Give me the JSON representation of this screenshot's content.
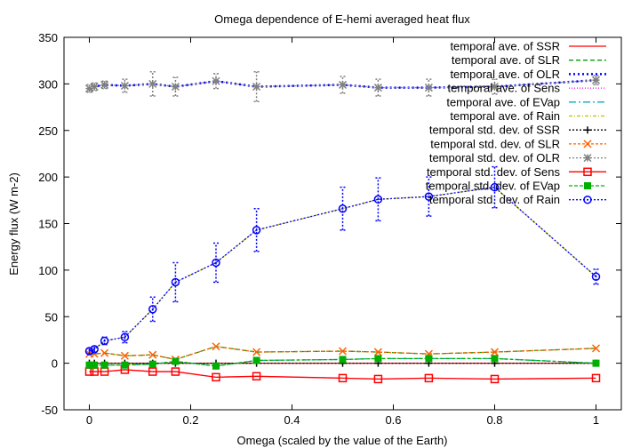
{
  "chart_data": {
    "type": "line",
    "title": "Omega dependence of E-hemi averaged heat flux",
    "xlabel": "Omega (scaled by the value of the Earth)",
    "ylabel": "Energy flux (W m-2)",
    "xlim": [
      -0.05,
      1.05
    ],
    "ylim": [
      -50,
      350
    ],
    "xticks": [
      0,
      0.2,
      0.4,
      0.6,
      0.8,
      1
    ],
    "xtick_labels": [
      "0",
      "0.2",
      "0.4",
      "0.6",
      "0.8",
      "1"
    ],
    "yticks": [
      -50,
      0,
      50,
      100,
      150,
      200,
      250,
      300,
      350
    ],
    "ytick_labels": [
      "-50",
      "0",
      "50",
      "100",
      "150",
      "200",
      "250",
      "300",
      "350"
    ],
    "grid": false,
    "legend_position": "top-right",
    "x": [
      0,
      0.01,
      0.03,
      0.07,
      0.125,
      0.17,
      0.25,
      0.33,
      0.5,
      0.57,
      0.67,
      0.8,
      1
    ],
    "series": [
      {
        "name": "temporal ave. of SSR",
        "color": "#ff0000",
        "dash": "",
        "marker": "none",
        "values": [
          0,
          0,
          0,
          0,
          0,
          0,
          0,
          0,
          0,
          0,
          0,
          0,
          0
        ]
      },
      {
        "name": "temporal ave. of SLR",
        "color": "#00a000",
        "dash": "5,3",
        "marker": "none",
        "values": [
          10,
          10,
          11,
          8,
          9,
          4,
          18,
          12,
          13,
          12,
          10,
          12,
          16
        ]
      },
      {
        "name": "temporal ave. of OLR",
        "color": "#0000ff",
        "dash": "2,3",
        "marker": "none",
        "width": 2.5,
        "values": [
          295,
          297,
          299,
          298,
          300,
          297,
          303,
          297,
          299,
          296,
          296,
          297,
          304
        ]
      },
      {
        "name": "temporal ave. of Sens",
        "color": "#ff00ff",
        "dash": "1,2",
        "marker": "none",
        "values": [
          -9,
          -9,
          -9,
          -7,
          -9,
          -9,
          -15,
          -14,
          -16,
          -17,
          -16,
          -17,
          -16
        ]
      },
      {
        "name": "temporal ave. of EVap",
        "color": "#00b0c0",
        "dash": "8,3,2,3",
        "marker": "none",
        "values": [
          -2,
          -2,
          -2,
          -2,
          -1,
          2,
          -3,
          3,
          4,
          5,
          5,
          5,
          0
        ]
      },
      {
        "name": "temporal ave. of Rain",
        "color": "#c0c000",
        "dash": "4,2,1,2",
        "marker": "none",
        "values": [
          13,
          15,
          24,
          28,
          58,
          87,
          108,
          143,
          166,
          176,
          179,
          189,
          93
        ]
      },
      {
        "name": "temporal std. dev. of SSR",
        "color": "#000000",
        "dash": "2,2",
        "marker": "plus",
        "values": [
          0,
          0,
          0,
          0,
          0,
          0,
          0,
          0,
          0,
          0,
          0,
          0,
          0
        ]
      },
      {
        "name": "temporal std. dev. of SLR",
        "color": "#ff6000",
        "dash": "3,2",
        "marker": "cross",
        "values": [
          10,
          10,
          11,
          8,
          9,
          4,
          18,
          12,
          13,
          12,
          10,
          12,
          16
        ]
      },
      {
        "name": "temporal std. dev. of OLR",
        "color": "#808080",
        "dash": "2,2",
        "marker": "star",
        "errors": [
          4,
          4,
          4,
          7,
          13,
          10,
          8,
          16,
          9,
          9,
          9,
          8,
          5
        ],
        "values": [
          295,
          297,
          299,
          298,
          300,
          297,
          303,
          297,
          299,
          296,
          296,
          297,
          304
        ]
      },
      {
        "name": "temporal std. dev. of Sens",
        "color": "#ff0000",
        "dash": "",
        "marker": "square",
        "values": [
          -9,
          -9,
          -9,
          -7,
          -9,
          -9,
          -15,
          -14,
          -16,
          -17,
          -16,
          -17,
          -16
        ]
      },
      {
        "name": "temporal std. dev. of EVap",
        "color": "#00b000",
        "dash": "4,2",
        "marker": "filled-square",
        "values": [
          -2,
          -2,
          -2,
          -2,
          -1,
          2,
          -3,
          3,
          4,
          5,
          5,
          5,
          0
        ]
      },
      {
        "name": "temporal std. dev. of Rain",
        "color": "#0000ff",
        "dash": "2,2",
        "marker": "circle",
        "errors": [
          3,
          3,
          4,
          6,
          13,
          21,
          21,
          23,
          23,
          23,
          21,
          22,
          8
        ],
        "values": [
          13,
          15,
          24,
          28,
          58,
          87,
          108,
          143,
          166,
          176,
          179,
          189,
          93
        ]
      }
    ]
  }
}
